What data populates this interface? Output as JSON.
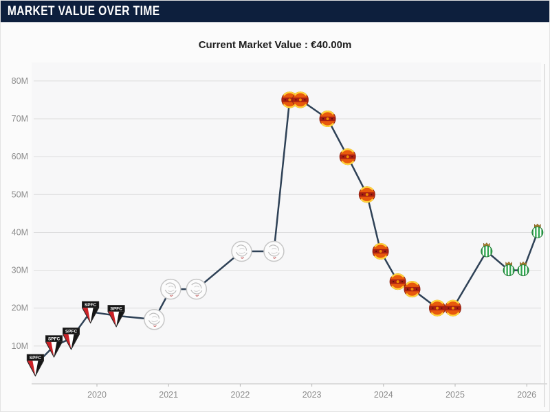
{
  "header": {
    "title": "MARKET VALUE OVER TIME"
  },
  "colors": {
    "header_bg": "#0d1f3d",
    "header_text": "#ffffff",
    "line": "#2e4156",
    "grid": "#dcdcdc",
    "axis_line": "#c0c0c0",
    "axis_text": "#8c8c8c",
    "title_text": "#1e1e1e",
    "plot_bg": "#f7f7f8",
    "page_bg": "#fbfbfb"
  },
  "chart_data": {
    "type": "line",
    "title": "Current Market Value : €40.00m",
    "current_value": "€40.00m",
    "ylabel": "",
    "xlabel": "",
    "ylim": [
      0,
      85
    ],
    "y_ticks": [
      {
        "value": 10,
        "label": "10M"
      },
      {
        "value": 20,
        "label": "20M"
      },
      {
        "value": 30,
        "label": "30M"
      },
      {
        "value": 40,
        "label": "40M"
      },
      {
        "value": 50,
        "label": "50M"
      },
      {
        "value": 60,
        "label": "60M"
      },
      {
        "value": 70,
        "label": "70M"
      },
      {
        "value": 80,
        "label": "80M"
      }
    ],
    "x_ticks": [
      {
        "value": 2020,
        "label": "2020"
      },
      {
        "value": 2021,
        "label": "2021"
      },
      {
        "value": 2022,
        "label": "2022"
      },
      {
        "value": 2023,
        "label": "2023"
      },
      {
        "value": 2024,
        "label": "2024"
      },
      {
        "value": 2025,
        "label": "2025"
      },
      {
        "value": 2026,
        "label": "2026"
      }
    ],
    "grid": true,
    "legend": "none",
    "marker_style": "club-badges",
    "clubs": {
      "sao-paulo": {
        "name": "São Paulo FC",
        "badge_text": "SPFC"
      },
      "ajax": {
        "name": "Ajax Amsterdam",
        "badge_text": ""
      },
      "man-united": {
        "name": "Manchester United",
        "badge_text": ""
      },
      "real-betis": {
        "name": "Real Betis",
        "badge_text": ""
      }
    },
    "points": [
      {
        "year": 2019.14,
        "value": 5,
        "club": "sao-paulo"
      },
      {
        "year": 2019.4,
        "value": 10,
        "club": "sao-paulo"
      },
      {
        "year": 2019.64,
        "value": 12,
        "club": "sao-paulo"
      },
      {
        "year": 2019.91,
        "value": 19,
        "club": "sao-paulo"
      },
      {
        "year": 2020.27,
        "value": 18,
        "club": "sao-paulo"
      },
      {
        "year": 2020.8,
        "value": 17,
        "club": "ajax"
      },
      {
        "year": 2021.03,
        "value": 25,
        "club": "ajax"
      },
      {
        "year": 2021.39,
        "value": 25,
        "club": "ajax"
      },
      {
        "year": 2022.02,
        "value": 35,
        "club": "ajax"
      },
      {
        "year": 2022.47,
        "value": 35,
        "club": "ajax"
      },
      {
        "year": 2022.69,
        "value": 75,
        "club": "man-united"
      },
      {
        "year": 2022.84,
        "value": 75,
        "club": "man-united"
      },
      {
        "year": 2023.22,
        "value": 70,
        "club": "man-united"
      },
      {
        "year": 2023.5,
        "value": 60,
        "club": "man-united"
      },
      {
        "year": 2023.77,
        "value": 50,
        "club": "man-united"
      },
      {
        "year": 2023.96,
        "value": 35,
        "club": "man-united"
      },
      {
        "year": 2024.2,
        "value": 27,
        "club": "man-united"
      },
      {
        "year": 2024.4,
        "value": 25,
        "club": "man-united"
      },
      {
        "year": 2024.75,
        "value": 20,
        "club": "man-united"
      },
      {
        "year": 2024.97,
        "value": 20,
        "club": "man-united"
      },
      {
        "year": 2025.44,
        "value": 35,
        "club": "real-betis"
      },
      {
        "year": 2025.75,
        "value": 30,
        "club": "real-betis"
      },
      {
        "year": 2025.95,
        "value": 30,
        "club": "real-betis"
      },
      {
        "year": 2026.15,
        "value": 40,
        "club": "real-betis"
      }
    ]
  }
}
